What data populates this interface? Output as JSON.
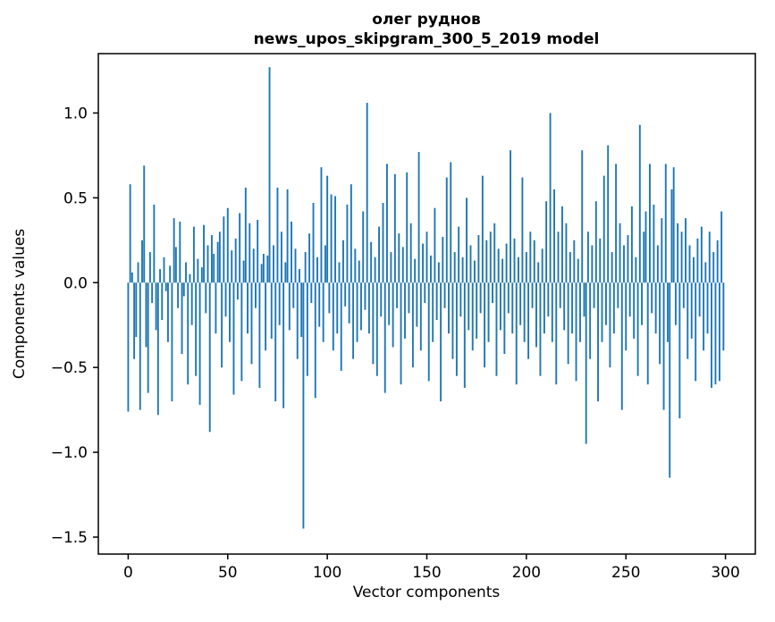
{
  "figure": {
    "title_line1": "олег руднов",
    "title_line2": "news_upos_skipgram_300_5_2019 model",
    "xlabel": "Vector components",
    "ylabel": "Components values"
  },
  "chart_data": {
    "type": "bar",
    "title": "олег руднов\nnews_upos_skipgram_300_5_2019 model",
    "xlabel": "Vector components",
    "ylabel": "Components values",
    "xlim": [
      -15,
      315
    ],
    "ylim": [
      -1.6,
      1.35
    ],
    "x_ticks": [
      0,
      50,
      100,
      150,
      200,
      250,
      300
    ],
    "y_ticks": [
      -1.5,
      -1.0,
      -0.5,
      0.0,
      0.5,
      1.0
    ],
    "bar_color": "#1f77b4",
    "grid": false,
    "legend": "none",
    "values": [
      -0.76,
      0.58,
      0.06,
      -0.45,
      -0.32,
      0.12,
      -0.75,
      0.25,
      0.69,
      -0.38,
      -0.65,
      0.18,
      -0.12,
      0.46,
      -0.28,
      -0.78,
      0.08,
      -0.22,
      0.15,
      -0.05,
      -0.35,
      0.1,
      -0.7,
      0.38,
      0.21,
      -0.15,
      0.36,
      -0.42,
      -0.08,
      0.12,
      -0.6,
      0.05,
      -0.25,
      0.33,
      -0.55,
      0.14,
      -0.72,
      0.09,
      0.34,
      -0.18,
      0.22,
      -0.88,
      0.28,
      0.17,
      -0.3,
      0.24,
      0.3,
      -0.5,
      0.39,
      -0.2,
      0.44,
      -0.35,
      0.19,
      -0.66,
      0.26,
      -0.1,
      0.41,
      -0.58,
      0.13,
      0.56,
      -0.3,
      0.35,
      -0.48,
      0.2,
      -0.15,
      0.37,
      -0.62,
      0.11,
      0.17,
      -0.4,
      0.16,
      1.27,
      -0.33,
      0.22,
      -0.7,
      0.56,
      -0.25,
      0.3,
      -0.74,
      0.12,
      0.55,
      -0.28,
      0.36,
      -0.15,
      0.2,
      -0.45,
      0.08,
      -0.32,
      -1.45,
      0.18,
      -0.55,
      0.29,
      -0.12,
      0.47,
      -0.68,
      0.15,
      -0.26,
      0.68,
      -0.35,
      0.22,
      0.63,
      -0.18,
      0.52,
      -0.4,
      0.51,
      -0.3,
      0.12,
      -0.52,
      0.25,
      -0.14,
      0.46,
      -0.24,
      0.58,
      -0.45,
      0.2,
      -0.35,
      0.13,
      -0.28,
      0.42,
      -0.16,
      1.06,
      -0.3,
      0.24,
      -0.48,
      0.15,
      -0.55,
      0.33,
      -0.2,
      0.47,
      -0.65,
      0.7,
      -0.25,
      0.18,
      -0.38,
      0.64,
      -0.15,
      0.29,
      -0.6,
      0.21,
      -0.33,
      0.65,
      -0.18,
      0.35,
      -0.5,
      0.14,
      -0.26,
      0.77,
      -0.4,
      0.23,
      -0.12,
      0.3,
      -0.58,
      0.16,
      -0.35,
      0.44,
      -0.22,
      0.12,
      -0.7,
      0.27,
      -0.15,
      0.62,
      -0.3,
      0.71,
      -0.45,
      0.18,
      -0.55,
      0.33,
      -0.2,
      0.15,
      -0.62,
      0.5,
      -0.28,
      0.22,
      -0.4,
      0.13,
      -0.33,
      0.28,
      -0.18,
      0.63,
      -0.5,
      0.25,
      -0.35,
      0.3,
      -0.12,
      0.35,
      -0.55,
      0.2,
      -0.28,
      0.14,
      -0.42,
      0.23,
      -0.18,
      0.78,
      -0.3,
      0.26,
      -0.6,
      0.15,
      -0.25,
      0.62,
      -0.35,
      0.18,
      -0.45,
      0.3,
      -0.15,
      0.25,
      -0.38,
      0.12,
      -0.55,
      0.2,
      -0.3,
      0.48,
      -0.2,
      1.0,
      -0.35,
      0.55,
      -0.6,
      0.3,
      -0.15,
      0.45,
      -0.28,
      0.35,
      -0.48,
      0.18,
      -0.3,
      0.25,
      -0.58,
      0.14,
      -0.35,
      0.78,
      -0.2,
      -0.95,
      0.3,
      -0.45,
      0.22,
      -0.15,
      0.48,
      -0.7,
      0.26,
      -0.35,
      0.63,
      -0.25,
      0.81,
      -0.5,
      0.18,
      -0.3,
      0.7,
      -0.15,
      0.35,
      -0.75,
      0.22,
      -0.4,
      0.28,
      -0.2,
      0.45,
      -0.33,
      0.15,
      -0.55,
      0.93,
      -0.25,
      0.3,
      0.42,
      -0.6,
      0.7,
      -0.18,
      0.46,
      -0.3,
      0.22,
      -0.48,
      0.38,
      -0.75,
      0.7,
      -0.35,
      -1.15,
      0.55,
      0.68,
      -0.25,
      0.35,
      -0.8,
      0.3,
      -0.15,
      0.38,
      -0.45,
      0.22,
      -0.33,
      0.15,
      -0.58,
      0.26,
      -0.2,
      0.33,
      -0.4,
      0.12,
      -0.3,
      0.3,
      -0.62,
      0.18,
      -0.6,
      0.25,
      -0.58,
      0.42,
      -0.4
    ]
  }
}
